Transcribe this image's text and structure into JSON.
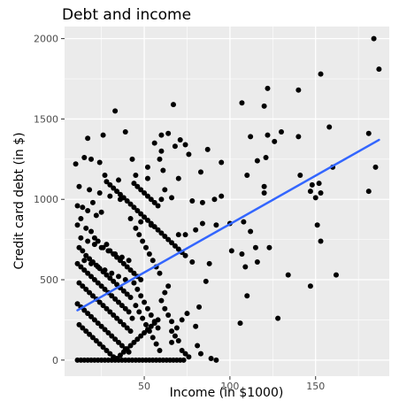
{
  "chart_data": {
    "type": "scatter",
    "title": "Debt and income",
    "xlabel": "Income (in $1000)",
    "ylabel": "Credit card debt (in $)",
    "xlim": [
      3.5,
      193
    ],
    "ylim": [
      -100,
      2075
    ],
    "x_ticks": [
      50,
      100,
      150
    ],
    "y_ticks": [
      0,
      500,
      1000,
      1500,
      2000
    ],
    "grid": true,
    "panel_background": "#ebebeb",
    "grid_color": "#ffffff",
    "point_color": "#000000",
    "fit_line_color": "#3366ff",
    "fit_line": {
      "x": [
        11,
        187
      ],
      "y": [
        310,
        1370
      ]
    },
    "points": [
      [
        184,
        2000
      ],
      [
        187,
        1810
      ],
      [
        153,
        1780
      ],
      [
        122,
        1690
      ],
      [
        140,
        1680
      ],
      [
        107,
        1600
      ],
      [
        120,
        1580
      ],
      [
        67,
        1590
      ],
      [
        33,
        1550
      ],
      [
        158,
        1450
      ],
      [
        130,
        1420
      ],
      [
        122,
        1400
      ],
      [
        112,
        1390
      ],
      [
        181,
        1410
      ],
      [
        140,
        1390
      ],
      [
        126,
        1360
      ],
      [
        17,
        1380
      ],
      [
        26,
        1400
      ],
      [
        39,
        1420
      ],
      [
        64,
        1410
      ],
      [
        60,
        1400
      ],
      [
        71,
        1370
      ],
      [
        74,
        1340
      ],
      [
        56,
        1350
      ],
      [
        68,
        1330
      ],
      [
        60,
        1300
      ],
      [
        87,
        1310
      ],
      [
        121,
        1260
      ],
      [
        116,
        1240
      ],
      [
        95,
        1230
      ],
      [
        24,
        1230
      ],
      [
        10,
        1220
      ],
      [
        43,
        1250
      ],
      [
        59,
        1250
      ],
      [
        76,
        1280
      ],
      [
        52,
        1200
      ],
      [
        61,
        1180
      ],
      [
        70,
        1130
      ],
      [
        83,
        1170
      ],
      [
        160,
        1200
      ],
      [
        152,
        1100
      ],
      [
        141,
        1150
      ],
      [
        147,
        1050
      ],
      [
        110,
        1150
      ],
      [
        120,
        1080
      ],
      [
        181,
        1050
      ],
      [
        185,
        1200
      ],
      [
        60,
        1000
      ],
      [
        78,
        990
      ],
      [
        84,
        980
      ],
      [
        91,
        1000
      ],
      [
        95,
        1020
      ],
      [
        120,
        1040
      ],
      [
        148,
        1090
      ],
      [
        153,
        1040
      ],
      [
        108,
        860
      ],
      [
        100,
        850
      ],
      [
        92,
        840
      ],
      [
        84,
        850
      ],
      [
        80,
        810
      ],
      [
        74,
        780
      ],
      [
        70,
        780
      ],
      [
        112,
        800
      ],
      [
        115,
        700
      ],
      [
        123,
        700
      ],
      [
        101,
        680
      ],
      [
        78,
        610
      ],
      [
        88,
        600
      ],
      [
        107,
        660
      ],
      [
        109,
        580
      ],
      [
        116,
        610
      ],
      [
        150,
        1010
      ],
      [
        151,
        840
      ],
      [
        153,
        740
      ],
      [
        134,
        530
      ],
      [
        147,
        460
      ],
      [
        162,
        530
      ],
      [
        128,
        260
      ],
      [
        110,
        400
      ],
      [
        86,
        490
      ],
      [
        82,
        330
      ],
      [
        75,
        290
      ],
      [
        72,
        250
      ],
      [
        69,
        200
      ],
      [
        80,
        210
      ],
      [
        66,
        180
      ],
      [
        66,
        110
      ],
      [
        81,
        90
      ],
      [
        83,
        40
      ],
      [
        89,
        10
      ],
      [
        92,
        0
      ],
      [
        106,
        230
      ],
      [
        60,
        370
      ],
      [
        62,
        420
      ],
      [
        64,
        460
      ],
      [
        11,
        960
      ],
      [
        14,
        950
      ],
      [
        17,
        930
      ],
      [
        20,
        980
      ],
      [
        22,
        900
      ],
      [
        25,
        920
      ],
      [
        13,
        880
      ],
      [
        11,
        840
      ],
      [
        16,
        820
      ],
      [
        19,
        800
      ],
      [
        21,
        760
      ],
      [
        23,
        740
      ],
      [
        26,
        700
      ],
      [
        28,
        720
      ],
      [
        30,
        680
      ],
      [
        32,
        660
      ],
      [
        34,
        640
      ],
      [
        36,
        620
      ],
      [
        38,
        600
      ],
      [
        40,
        580
      ],
      [
        42,
        560
      ],
      [
        44,
        540
      ],
      [
        46,
        520
      ],
      [
        48,
        500
      ],
      [
        12,
        700
      ],
      [
        14,
        680
      ],
      [
        16,
        650
      ],
      [
        18,
        630
      ],
      [
        20,
        610
      ],
      [
        22,
        590
      ],
      [
        24,
        570
      ],
      [
        26,
        550
      ],
      [
        28,
        530
      ],
      [
        30,
        510
      ],
      [
        32,
        490
      ],
      [
        34,
        470
      ],
      [
        36,
        450
      ],
      [
        38,
        430
      ],
      [
        40,
        410
      ],
      [
        42,
        390
      ],
      [
        11,
        600
      ],
      [
        13,
        580
      ],
      [
        15,
        560
      ],
      [
        17,
        540
      ],
      [
        19,
        520
      ],
      [
        21,
        500
      ],
      [
        23,
        480
      ],
      [
        25,
        460
      ],
      [
        27,
        440
      ],
      [
        29,
        420
      ],
      [
        31,
        400
      ],
      [
        33,
        380
      ],
      [
        35,
        360
      ],
      [
        37,
        340
      ],
      [
        39,
        320
      ],
      [
        41,
        300
      ],
      [
        12,
        480
      ],
      [
        14,
        460
      ],
      [
        16,
        440
      ],
      [
        18,
        420
      ],
      [
        20,
        400
      ],
      [
        22,
        380
      ],
      [
        24,
        360
      ],
      [
        26,
        340
      ],
      [
        28,
        320
      ],
      [
        30,
        300
      ],
      [
        32,
        280
      ],
      [
        34,
        260
      ],
      [
        36,
        240
      ],
      [
        38,
        220
      ],
      [
        40,
        200
      ],
      [
        42,
        180
      ],
      [
        11,
        350
      ],
      [
        13,
        330
      ],
      [
        15,
        310
      ],
      [
        17,
        290
      ],
      [
        19,
        270
      ],
      [
        21,
        250
      ],
      [
        23,
        230
      ],
      [
        25,
        210
      ],
      [
        27,
        190
      ],
      [
        29,
        170
      ],
      [
        31,
        150
      ],
      [
        33,
        130
      ],
      [
        35,
        110
      ],
      [
        37,
        90
      ],
      [
        39,
        70
      ],
      [
        41,
        50
      ],
      [
        12,
        220
      ],
      [
        14,
        200
      ],
      [
        16,
        180
      ],
      [
        18,
        160
      ],
      [
        20,
        140
      ],
      [
        22,
        120
      ],
      [
        24,
        100
      ],
      [
        26,
        80
      ],
      [
        28,
        60
      ],
      [
        30,
        40
      ],
      [
        32,
        20
      ],
      [
        34,
        10
      ],
      [
        36,
        30
      ],
      [
        38,
        50
      ],
      [
        40,
        70
      ],
      [
        42,
        90
      ],
      [
        44,
        110
      ],
      [
        46,
        130
      ],
      [
        48,
        150
      ],
      [
        50,
        170
      ],
      [
        52,
        190
      ],
      [
        54,
        210
      ],
      [
        56,
        230
      ],
      [
        58,
        250
      ],
      [
        11,
        0
      ],
      [
        13,
        0
      ],
      [
        15,
        0
      ],
      [
        17,
        0
      ],
      [
        19,
        0
      ],
      [
        21,
        0
      ],
      [
        23,
        0
      ],
      [
        25,
        0
      ],
      [
        27,
        0
      ],
      [
        29,
        0
      ],
      [
        31,
        0
      ],
      [
        33,
        0
      ],
      [
        35,
        0
      ],
      [
        37,
        0
      ],
      [
        39,
        0
      ],
      [
        41,
        0
      ],
      [
        43,
        0
      ],
      [
        45,
        0
      ],
      [
        47,
        0
      ],
      [
        49,
        0
      ],
      [
        51,
        0
      ],
      [
        53,
        0
      ],
      [
        55,
        0
      ],
      [
        57,
        0
      ],
      [
        59,
        0
      ],
      [
        61,
        0
      ],
      [
        63,
        0
      ],
      [
        65,
        0
      ],
      [
        67,
        0
      ],
      [
        69,
        0
      ],
      [
        71,
        0
      ],
      [
        73,
        0
      ],
      [
        44,
        1100
      ],
      [
        46,
        1080
      ],
      [
        48,
        1060
      ],
      [
        50,
        1040
      ],
      [
        52,
        1020
      ],
      [
        54,
        1000
      ],
      [
        56,
        980
      ],
      [
        58,
        960
      ],
      [
        28,
        1110
      ],
      [
        30,
        1090
      ],
      [
        32,
        1070
      ],
      [
        34,
        1050
      ],
      [
        36,
        1030
      ],
      [
        38,
        1010
      ],
      [
        40,
        990
      ],
      [
        42,
        970
      ],
      [
        44,
        950
      ],
      [
        46,
        930
      ],
      [
        48,
        910
      ],
      [
        50,
        890
      ],
      [
        52,
        870
      ],
      [
        54,
        850
      ],
      [
        56,
        830
      ],
      [
        58,
        810
      ],
      [
        60,
        790
      ],
      [
        62,
        770
      ],
      [
        64,
        750
      ],
      [
        66,
        730
      ],
      [
        68,
        710
      ],
      [
        70,
        690
      ],
      [
        72,
        670
      ],
      [
        74,
        650
      ],
      [
        45,
        820
      ],
      [
        47,
        780
      ],
      [
        49,
        740
      ],
      [
        51,
        700
      ],
      [
        53,
        660
      ],
      [
        55,
        620
      ],
      [
        57,
        580
      ],
      [
        59,
        540
      ],
      [
        44,
        480
      ],
      [
        46,
        440
      ],
      [
        48,
        400
      ],
      [
        50,
        360
      ],
      [
        52,
        320
      ],
      [
        54,
        280
      ],
      [
        56,
        240
      ],
      [
        58,
        200
      ],
      [
        45,
        340
      ],
      [
        47,
        300
      ],
      [
        49,
        260
      ],
      [
        51,
        220
      ],
      [
        53,
        180
      ],
      [
        55,
        140
      ],
      [
        57,
        100
      ],
      [
        59,
        60
      ],
      [
        62,
        320
      ],
      [
        64,
        280
      ],
      [
        66,
        240
      ],
      [
        68,
        150
      ],
      [
        70,
        120
      ],
      [
        72,
        60
      ],
      [
        74,
        40
      ],
      [
        76,
        20
      ],
      [
        15,
        1260
      ],
      [
        19,
        1250
      ],
      [
        27,
        1150
      ],
      [
        35,
        1120
      ],
      [
        45,
        1150
      ],
      [
        52,
        1130
      ],
      [
        62,
        1060
      ],
      [
        66,
        1010
      ],
      [
        12,
        1080
      ],
      [
        18,
        1060
      ],
      [
        24,
        1040
      ],
      [
        30,
        1020
      ],
      [
        36,
        1000
      ],
      [
        42,
        880
      ],
      [
        48,
        860
      ],
      [
        54,
        840
      ],
      [
        13,
        760
      ],
      [
        17,
        740
      ],
      [
        21,
        720
      ],
      [
        25,
        700
      ],
      [
        29,
        680
      ],
      [
        33,
        660
      ],
      [
        37,
        640
      ],
      [
        41,
        620
      ],
      [
        15,
        620
      ],
      [
        19,
        600
      ],
      [
        23,
        580
      ],
      [
        27,
        560
      ],
      [
        31,
        540
      ],
      [
        35,
        520
      ],
      [
        39,
        500
      ],
      [
        43,
        260
      ]
    ]
  }
}
